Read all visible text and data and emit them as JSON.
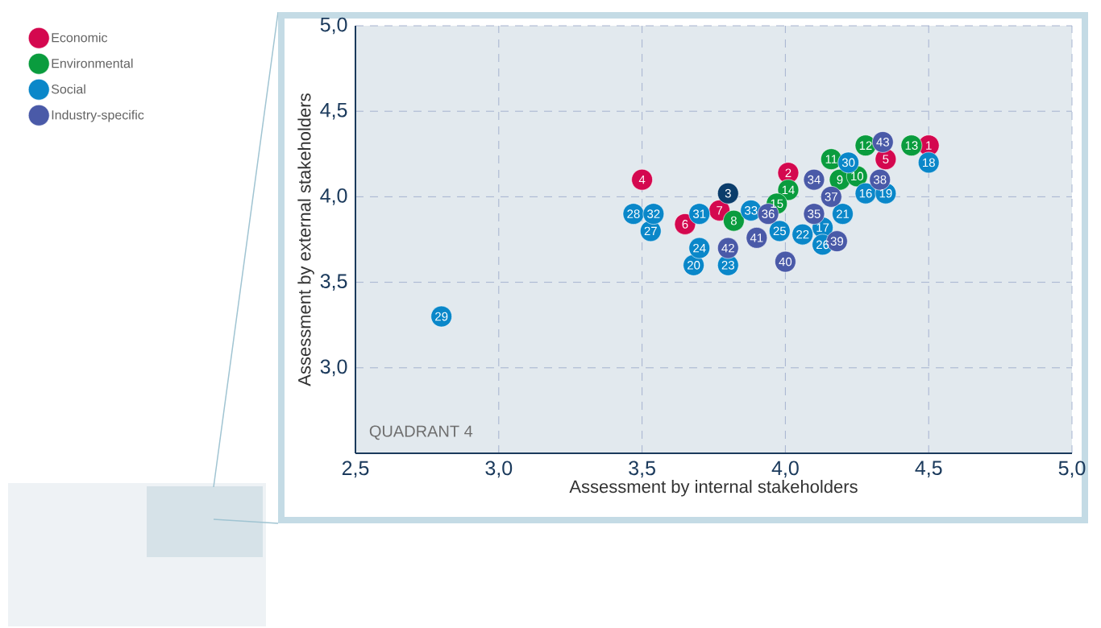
{
  "chart_data": {
    "type": "scatter",
    "xlabel": "Assessment by internal stakeholders",
    "ylabel": "Assessment by external stakeholders",
    "xlim": [
      2.5,
      5.0
    ],
    "ylim": [
      2.5,
      5.0
    ],
    "xticks": [
      {
        "value": 2.5,
        "label": "2,5"
      },
      {
        "value": 3.0,
        "label": "3,0"
      },
      {
        "value": 3.5,
        "label": "3,5"
      },
      {
        "value": 4.0,
        "label": "4,0"
      },
      {
        "value": 4.5,
        "label": "4,5"
      },
      {
        "value": 5.0,
        "label": "5,0"
      }
    ],
    "yticks": [
      {
        "value": 3.0,
        "label": "3,0"
      },
      {
        "value": 3.5,
        "label": "3,5"
      },
      {
        "value": 4.0,
        "label": "4,0"
      },
      {
        "value": 4.5,
        "label": "4,5"
      },
      {
        "value": 5.0,
        "label": "5,0"
      }
    ],
    "grid": true,
    "legend": "top left",
    "series": [
      {
        "name": "Economic",
        "color": "#d4084f",
        "x": [
          4.5,
          4.01,
          3.5,
          4.35,
          3.65,
          3.77
        ],
        "values": [
          4.3,
          4.14,
          4.1,
          4.22,
          3.84,
          3.92
        ]
      },
      {
        "name": "Environmental",
        "color": "#0a9c3e",
        "x": [
          3.82,
          4.19,
          4.25,
          4.16,
          4.28,
          4.44,
          4.01,
          3.97
        ],
        "values": [
          3.86,
          4.1,
          4.12,
          4.22,
          4.3,
          4.3,
          4.04,
          3.96
        ]
      },
      {
        "name": "Social",
        "color": "#0a87c9",
        "x": [
          4.28,
          4.13,
          4.5,
          4.35,
          3.68,
          4.2,
          4.06,
          3.8,
          3.7,
          3.98,
          4.13,
          3.53,
          3.47,
          2.8,
          4.22,
          3.7,
          3.54,
          3.88
        ],
        "values": [
          4.02,
          3.82,
          4.2,
          4.02,
          3.6,
          3.9,
          3.78,
          3.6,
          3.7,
          3.8,
          3.72,
          3.8,
          3.9,
          3.3,
          4.2,
          3.9,
          3.9,
          3.92
        ]
      },
      {
        "name": "Industry-specific",
        "color": "#4a5aa8",
        "x": [
          4.1,
          4.1,
          3.94,
          4.16,
          4.33,
          4.18,
          4.0,
          3.9,
          3.8,
          4.34
        ],
        "values": [
          4.1,
          3.9,
          3.9,
          4.0,
          4.1,
          3.74,
          3.62,
          3.76,
          3.7,
          4.32
        ]
      },
      {
        "color": "#0b3d6b",
        "x": [
          3.8
        ],
        "values": [
          4.02
        ]
      }
    ],
    "annotations": [
      "QUADRANT 4",
      {
        "text": "1",
        "x": 4.5,
        "y": 4.3
      },
      {
        "text": "2",
        "x": 4.01,
        "y": 4.14
      },
      {
        "text": "4",
        "x": 3.5,
        "y": 4.1
      },
      {
        "text": "5",
        "x": 4.35,
        "y": 4.22
      },
      {
        "text": "6",
        "x": 3.65,
        "y": 3.84
      },
      {
        "text": "7",
        "x": 3.77,
        "y": 3.92
      },
      {
        "text": "8",
        "x": 3.82,
        "y": 3.86
      },
      {
        "text": "9",
        "x": 4.19,
        "y": 4.1
      },
      {
        "text": "10",
        "x": 4.25,
        "y": 4.12
      },
      {
        "text": "11",
        "x": 4.16,
        "y": 4.22
      },
      {
        "text": "12",
        "x": 4.28,
        "y": 4.3
      },
      {
        "text": "13",
        "x": 4.44,
        "y": 4.3
      },
      {
        "text": "14",
        "x": 4.01,
        "y": 4.04
      },
      {
        "text": "15",
        "x": 3.97,
        "y": 3.96
      },
      {
        "text": "16",
        "x": 4.28,
        "y": 4.02
      },
      {
        "text": "17",
        "x": 4.13,
        "y": 3.82
      },
      {
        "text": "18",
        "x": 4.5,
        "y": 4.2
      },
      {
        "text": "19",
        "x": 4.35,
        "y": 4.02
      },
      {
        "text": "20",
        "x": 3.68,
        "y": 3.6
      },
      {
        "text": "21",
        "x": 4.2,
        "y": 3.9
      },
      {
        "text": "22",
        "x": 4.06,
        "y": 3.78
      },
      {
        "text": "23",
        "x": 3.8,
        "y": 3.6
      },
      {
        "text": "24",
        "x": 3.7,
        "y": 3.7
      },
      {
        "text": "25",
        "x": 3.98,
        "y": 3.8
      },
      {
        "text": "26",
        "x": 4.13,
        "y": 3.72
      },
      {
        "text": "27",
        "x": 3.53,
        "y": 3.8
      },
      {
        "text": "28",
        "x": 3.47,
        "y": 3.9
      },
      {
        "text": "29",
        "x": 2.8,
        "y": 3.3
      },
      {
        "text": "30",
        "x": 4.22,
        "y": 4.2
      },
      {
        "text": "31",
        "x": 3.7,
        "y": 3.9
      },
      {
        "text": "32",
        "x": 3.54,
        "y": 3.9
      },
      {
        "text": "33",
        "x": 3.88,
        "y": 3.92
      },
      {
        "text": "34",
        "x": 4.1,
        "y": 4.1
      },
      {
        "text": "35",
        "x": 4.1,
        "y": 3.9
      },
      {
        "text": "36",
        "x": 3.94,
        "y": 3.9
      },
      {
        "text": "37",
        "x": 4.16,
        "y": 4.0
      },
      {
        "text": "38",
        "x": 4.33,
        "y": 4.1
      },
      {
        "text": "39",
        "x": 4.18,
        "y": 3.74
      },
      {
        "text": "40",
        "x": 4.0,
        "y": 3.62
      },
      {
        "text": "41",
        "x": 3.9,
        "y": 3.76
      },
      {
        "text": "42",
        "x": 3.8,
        "y": 3.7
      },
      {
        "text": "43",
        "x": 4.34,
        "y": 4.32
      },
      {
        "text": "3",
        "x": 3.8,
        "y": 4.02
      }
    ]
  }
}
